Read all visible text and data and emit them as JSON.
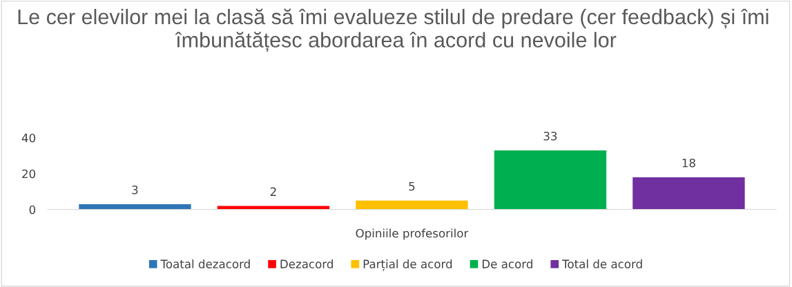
{
  "chart_data": {
    "type": "bar",
    "title": "Le cer elevilor mei la clasă să îmi evalueze stilul de predare (cer feedback) și îmi  îmbunătățesc abordarea în acord cu nevoile lor",
    "categories": [
      "Opiniile profesorilor"
    ],
    "series": [
      {
        "name": "Toatal dezacord",
        "color": "#2e75b6",
        "values": [
          3
        ]
      },
      {
        "name": "Dezacord",
        "color": "#ff0000",
        "values": [
          2
        ]
      },
      {
        "name": "Parțial de acord",
        "color": "#ffc000",
        "values": [
          5
        ]
      },
      {
        "name": "De acord",
        "color": "#00b050",
        "values": [
          33
        ]
      },
      {
        "name": "Total de acord",
        "color": "#7030a0",
        "values": [
          18
        ]
      }
    ],
    "ylim": [
      0,
      40
    ],
    "yticks": [
      0,
      20,
      40
    ],
    "data_labels": true,
    "legend": "bottom",
    "grid": false
  }
}
